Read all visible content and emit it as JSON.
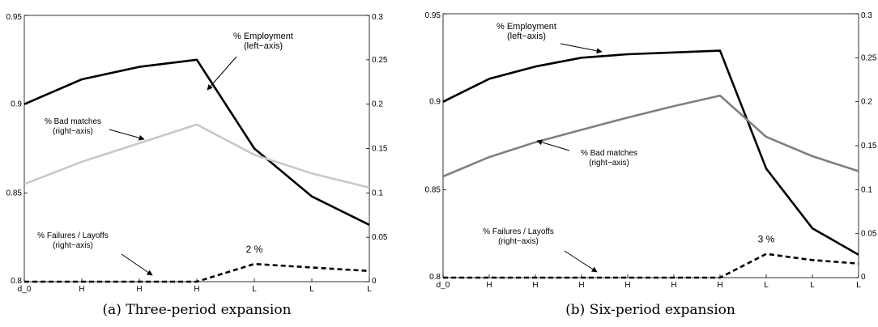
{
  "chart_data": [
    {
      "type": "line",
      "caption": "(a) Three-period expansion",
      "categories": [
        "d_0",
        "H",
        "H",
        "H",
        "L",
        "L",
        "L"
      ],
      "left_axis": {
        "ylim": [
          0.8,
          0.95
        ],
        "ticks": [
          "0.8",
          "0.85",
          "0.9",
          "0.95"
        ],
        "tick_values": [
          0.8,
          0.85,
          0.9,
          0.95
        ]
      },
      "right_axis": {
        "ylim": [
          0,
          0.3
        ],
        "ticks": [
          "0",
          "0.05",
          "0.1",
          "0.15",
          "0.2",
          "0.25",
          "0.3"
        ],
        "tick_values": [
          0,
          0.05,
          0.1,
          0.15,
          0.2,
          0.25,
          0.3
        ]
      },
      "series": [
        {
          "axis": "left",
          "style": "solid",
          "color": "#000000",
          "values": [
            0.9,
            0.914,
            0.921,
            0.925,
            0.875,
            0.848,
            0.832
          ]
        },
        {
          "axis": "right",
          "style": "solid",
          "color": "#c8c8c8",
          "values": [
            0.11,
            0.135,
            0.156,
            0.177,
            0.143,
            0.122,
            0.106
          ]
        },
        {
          "axis": "right",
          "style": "dashed",
          "color": "#000000",
          "values": [
            0.0,
            0.0,
            0.0,
            0.0,
            0.02,
            0.016,
            0.012
          ]
        }
      ],
      "annotations": {
        "employment": [
          "% Employment",
          "(left−axis)"
        ],
        "bad_matches": [
          "% Bad matches",
          "(right−axis)"
        ],
        "failures": [
          "% Failures / Layoffs",
          "(right−axis)"
        ],
        "peak_label": "2 %"
      }
    },
    {
      "type": "line",
      "caption": "(b) Six-period expansion",
      "categories": [
        "d_0",
        "H",
        "H",
        "H",
        "H",
        "H",
        "H",
        "L",
        "L",
        "L"
      ],
      "left_axis": {
        "ylim": [
          0.8,
          0.95
        ],
        "ticks": [
          "0.8",
          "0.85",
          "0.9",
          "0.95"
        ],
        "tick_values": [
          0.8,
          0.85,
          0.9,
          0.95
        ]
      },
      "right_axis": {
        "ylim": [
          0,
          0.3
        ],
        "ticks": [
          "0",
          "0.05",
          "0.1",
          "0.15",
          "0.2",
          "0.25",
          "0.3"
        ],
        "tick_values": [
          0,
          0.05,
          0.1,
          0.15,
          0.2,
          0.25,
          0.3
        ]
      },
      "series": [
        {
          "axis": "left",
          "style": "solid",
          "color": "#000000",
          "values": [
            0.9,
            0.913,
            0.92,
            0.925,
            0.927,
            0.928,
            0.929,
            0.862,
            0.828,
            0.813
          ]
        },
        {
          "axis": "right",
          "style": "solid",
          "color": "#808080",
          "values": [
            0.115,
            0.137,
            0.154,
            0.168,
            0.182,
            0.195,
            0.207,
            0.16,
            0.138,
            0.121
          ]
        },
        {
          "axis": "right",
          "style": "dashed",
          "color": "#000000",
          "values": [
            0.0,
            0.0,
            0.0,
            0.0,
            0.0,
            0.0,
            0.0,
            0.027,
            0.02,
            0.016
          ]
        }
      ],
      "annotations": {
        "employment": [
          "% Employment",
          "(left−axis)"
        ],
        "bad_matches": [
          "% Bad matches",
          "(right−axis)"
        ],
        "failures": [
          "% Failures / Layoffs",
          "(right−axis)"
        ],
        "peak_label": "3 %"
      }
    }
  ]
}
